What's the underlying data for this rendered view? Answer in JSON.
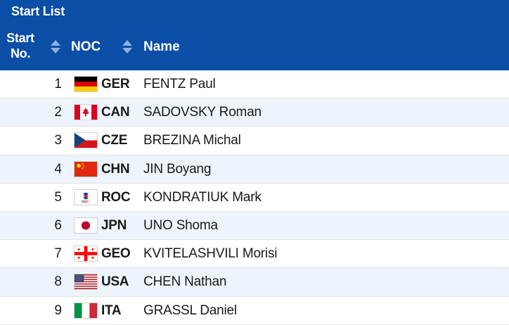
{
  "header": {
    "title": "Start List",
    "col_start_line1": "Start",
    "col_start_line2": "No.",
    "col_noc": "NOC",
    "col_name": "Name",
    "color": "#0a4ea6"
  },
  "rows": [
    {
      "num": "1",
      "noc": "GER",
      "name": "FENTZ Paul",
      "flag": "germany-flag-icon"
    },
    {
      "num": "2",
      "noc": "CAN",
      "name": "SADOVSKY Roman",
      "flag": "canada-flag-icon"
    },
    {
      "num": "3",
      "noc": "CZE",
      "name": "BREZINA Michal",
      "flag": "czech-flag-icon"
    },
    {
      "num": "4",
      "noc": "CHN",
      "name": "JIN Boyang",
      "flag": "china-flag-icon"
    },
    {
      "num": "5",
      "noc": "ROC",
      "name": "KONDRATIUK Mark",
      "flag": "roc-emblem-icon"
    },
    {
      "num": "6",
      "noc": "JPN",
      "name": "UNO Shoma",
      "flag": "japan-flag-icon"
    },
    {
      "num": "7",
      "noc": "GEO",
      "name": "KVITELASHVILI Morisi",
      "flag": "georgia-flag-icon"
    },
    {
      "num": "8",
      "noc": "USA",
      "name": "CHEN Nathan",
      "flag": "usa-flag-icon"
    },
    {
      "num": "9",
      "noc": "ITA",
      "name": "GRASSL Daniel",
      "flag": "italy-flag-icon"
    }
  ]
}
